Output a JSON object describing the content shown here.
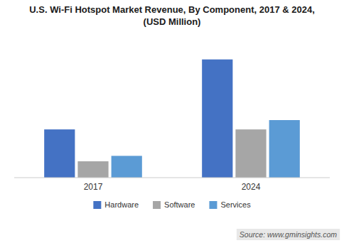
{
  "chart_data": {
    "type": "bar",
    "title": "U.S. Wi-Fi Hotspot Market Revenue, By Component, 2017 & 2024,\n(USD Million)",
    "categories": [
      "2017",
      "2024"
    ],
    "series": [
      {
        "name": "Hardware",
        "color": "#4472c4",
        "values": [
          310,
          760
        ]
      },
      {
        "name": "Software",
        "color": "#a6a6a6",
        "values": [
          105,
          310
        ]
      },
      {
        "name": "Services",
        "color": "#5b9bd5",
        "values": [
          140,
          370
        ]
      }
    ],
    "ylim": [
      0,
      900
    ],
    "grid": false,
    "legend": "bottom",
    "tick_labels": "x",
    "annotations": [
      "Source: www.gminsights.com"
    ]
  }
}
